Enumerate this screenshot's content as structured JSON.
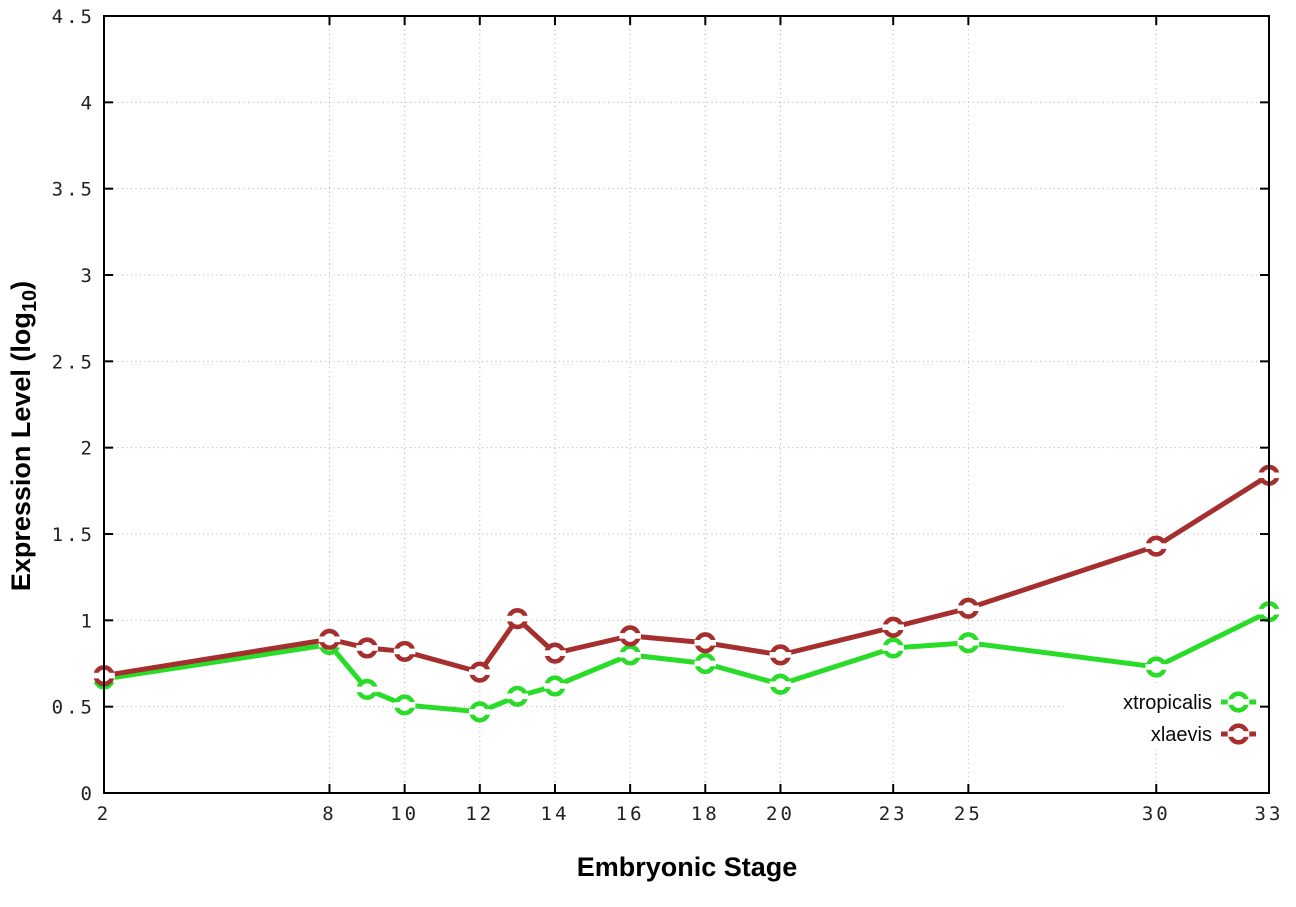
{
  "chart_data": {
    "type": "line",
    "title": "",
    "xlabel": "Embryonic Stage",
    "ylabel": {
      "main": "Expression Level (log",
      "sub": "10",
      "end": ")"
    },
    "x": [
      2,
      8,
      9,
      10,
      12,
      13,
      14,
      16,
      18,
      20,
      23,
      25,
      30,
      33
    ],
    "xlim": [
      2,
      33
    ],
    "ylim": [
      0,
      4.5
    ],
    "xticks": [
      2,
      8,
      10,
      12,
      14,
      16,
      18,
      20,
      23,
      25,
      30,
      33
    ],
    "yticks": [
      0,
      0.5,
      1,
      1.5,
      2,
      2.5,
      3,
      3.5,
      4,
      4.5
    ],
    "grid": true,
    "grid_style": "dotted",
    "legend_position": "inside-bottom-right",
    "marker": "open-circle-with-horizontal-bar",
    "colors": {
      "xtropicalis": "#28dc28",
      "xlaevis": "#a52f2f",
      "axis": "#000000",
      "grid": "#b0b0b0"
    },
    "series": [
      {
        "name": "xtropicalis",
        "color": "#28dc28",
        "values": [
          0.66,
          0.86,
          0.6,
          0.51,
          0.47,
          0.56,
          0.62,
          0.8,
          0.75,
          0.63,
          0.84,
          0.87,
          0.73,
          1.05
        ]
      },
      {
        "name": "xlaevis",
        "color": "#a52f2f",
        "values": [
          0.68,
          0.89,
          0.84,
          0.82,
          0.7,
          1.01,
          0.81,
          0.91,
          0.87,
          0.8,
          0.96,
          1.07,
          1.43,
          1.84
        ]
      }
    ]
  }
}
